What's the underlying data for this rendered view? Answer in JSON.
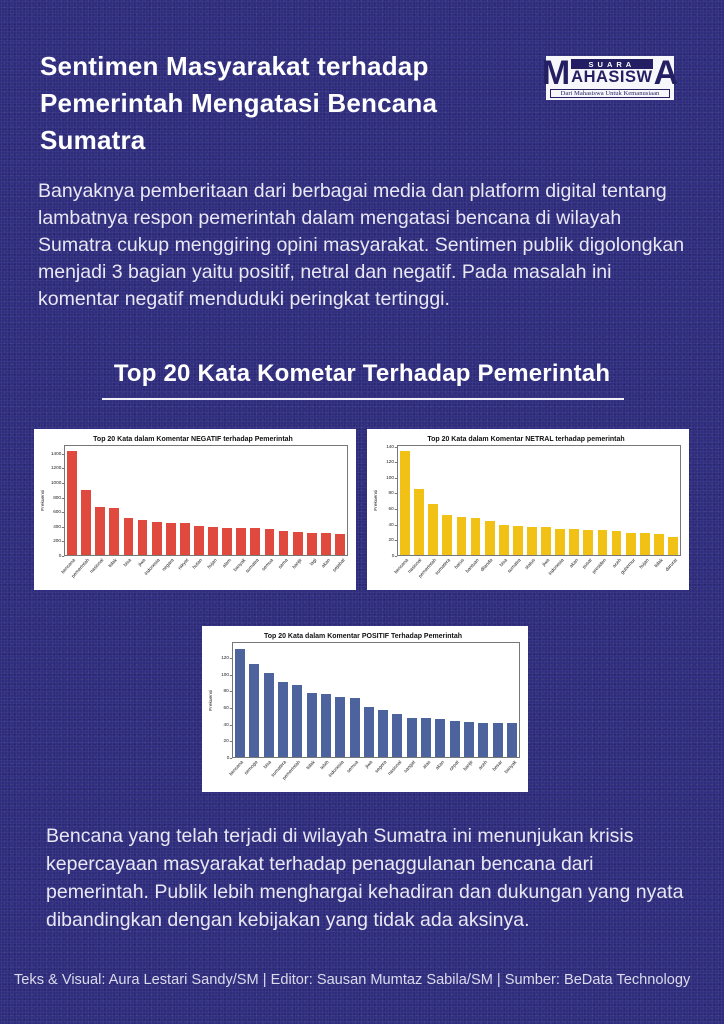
{
  "page": {
    "title": "Sentimen Masyarakat terhadap Pemerintah Mengatasi Bencana Sumatra",
    "intro": "Banyaknya pemberitaan dari berbagai media dan platform digital tentang lambatnya respon pemerintah dalam mengatasi bencana di wilayah Sumatra cukup menggiring opini masyarakat. Sentimen publik digolongkan menjadi 3 bagian yaitu positif, netral dan negatif. Pada masalah ini komentar negatif menduduki peringkat tertinggi.",
    "section_heading": "Top 20 Kata Kometar Terhadap Pemerintah",
    "conclusion": "Bencana yang telah terjadi di wilayah Sumatra ini menunjukan krisis kepercayaan masyarakat terhadap penaggulanan bencana dari pemerintah. Publik lebih menghargai kehadiran dan dukungan yang nyata dibandingkan dengan kebijakan yang tidak ada aksinya.",
    "credits": "Teks & Visual: Aura Lestari Sandy/SM | Editor: Sausan Mumtaz Sabila/SM | Sumber: BeData Technology"
  },
  "logo": {
    "top_word": "SUARA",
    "big_first": "M",
    "middle": "AHASISW",
    "big_last": "A",
    "tagline": "Dari Mahasiswa Untuk Kemanusiaan"
  },
  "colors": {
    "background": "#2f2d7d",
    "negative_bar": "#e04a3e",
    "neutral_bar": "#f2c116",
    "positive_bar": "#4c639d",
    "panel": "#ffffff"
  },
  "chart_data": [
    {
      "type": "bar",
      "title": "Top 20 Kata dalam Komentar NEGATIF terhadap Pemerintah",
      "ylabel": "Frekuensi",
      "xlabel": "",
      "categories": [
        "bencana",
        "pemerintah",
        "nasional",
        "tidak",
        "bisa",
        "jiwa",
        "indonesia",
        "negara",
        "rakyat",
        "hutan",
        "hujan",
        "alam",
        "banyak",
        "sumatra",
        "semua",
        "sama",
        "banjir",
        "lagi",
        "akan",
        "pejabat"
      ],
      "values": [
        1450,
        900,
        670,
        650,
        520,
        490,
        460,
        450,
        440,
        405,
        390,
        380,
        375,
        370,
        360,
        340,
        325,
        310,
        305,
        300
      ],
      "yticks": [
        0,
        200,
        400,
        600,
        800,
        1000,
        1200,
        1400
      ],
      "ylim": [
        0,
        1520
      ],
      "grid": false,
      "legend": "none",
      "bar_color": "#e04a3e"
    },
    {
      "type": "bar",
      "title": "Top 20 Kata dalam Komentar NETRAL terhadap pemerintah",
      "ylabel": "Frekuensi",
      "xlabel": "",
      "categories": [
        "bencana",
        "nasional",
        "pemerintah",
        "sumatera",
        "harus",
        "bantuan",
        "dilanda",
        "bisa",
        "sumatra",
        "status",
        "jiwa",
        "indonesia",
        "akan",
        "pusat",
        "presiden",
        "aceh",
        "gubernur",
        "hujan",
        "tidak",
        "darurat"
      ],
      "values": [
        135,
        86,
        67,
        52,
        49,
        48,
        44,
        39,
        38,
        36,
        36,
        34,
        34,
        33,
        32,
        31,
        29,
        29,
        27,
        24
      ],
      "yticks": [
        0,
        20,
        40,
        60,
        80,
        100,
        120,
        140
      ],
      "ylim": [
        0,
        142
      ],
      "grid": false,
      "legend": "none",
      "bar_color": "#f2c116"
    },
    {
      "type": "bar",
      "title": "Top 20 Kata dalam Komentar POSITIF Terhadap Pemerintah",
      "ylabel": "Frekuensi",
      "xlabel": "",
      "categories": [
        "bencana",
        "semoga",
        "bisa",
        "sumatera",
        "pemerintah",
        "tidak",
        "lebih",
        "indonesia",
        "semua",
        "jiwa",
        "segera",
        "nasional",
        "sangat",
        "atas",
        "akan",
        "cepat",
        "banjir",
        "aceh",
        "besar",
        "banyak"
      ],
      "values": [
        132,
        113,
        102,
        91,
        88,
        78,
        77,
        73,
        72,
        61,
        57,
        53,
        48,
        48,
        46,
        44,
        43,
        41,
        41,
        41
      ],
      "yticks": [
        0,
        20,
        40,
        60,
        80,
        100,
        120
      ],
      "ylim": [
        0,
        139
      ],
      "grid": false,
      "legend": "none",
      "bar_color": "#4c639d"
    }
  ]
}
